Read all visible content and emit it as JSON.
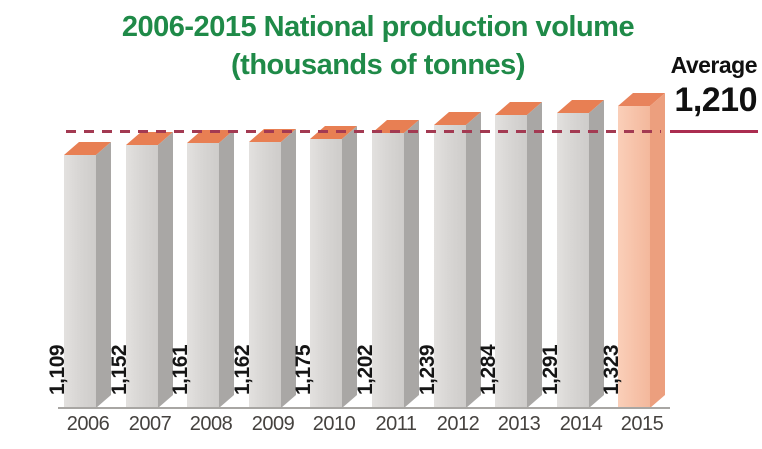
{
  "title": {
    "line1": "2006-2015 National production volume",
    "line2": "(thousands of tonnes)"
  },
  "average": {
    "label": "Average",
    "value": "1,210",
    "numeric": 1210
  },
  "chart_data": {
    "type": "bar",
    "title": "2006-2015 National production volume (thousands of tonnes)",
    "xlabel": "",
    "ylabel": "",
    "ylim": [
      0,
      1370
    ],
    "grid": false,
    "legend": "none",
    "categories": [
      "2006",
      "2007",
      "2008",
      "2009",
      "2010",
      "2011",
      "2012",
      "2013",
      "2014",
      "2015"
    ],
    "values": [
      1109,
      1152,
      1161,
      1162,
      1175,
      1202,
      1239,
      1284,
      1291,
      1323
    ],
    "value_labels": [
      "1,109",
      "1,152",
      "1,161",
      "1,162",
      "1,175",
      "1,202",
      "1,239",
      "1,284",
      "1,291",
      "1,323"
    ],
    "average_line": 1210,
    "average_line_style": "dashed",
    "highlight_category": "2015",
    "style": "3d-columns",
    "colors": {
      "title_green": "#1f8a48",
      "average_line": "#a33a52",
      "average_underline": "#ab2d50",
      "axis": "#a8a6a3",
      "tick_text": "#45423f",
      "value_text": "#151515",
      "normal": {
        "front": "#d8d6d4",
        "front_light": "#e3e1df",
        "front_dark": "#ceccca",
        "side": "#a9a7a5",
        "top": "#e87f53"
      },
      "highlight": {
        "front": "#f7c4ab",
        "front_light": "#facfb9",
        "front_dark": "#f3b89c",
        "side": "#ec9f7e",
        "top": "#e8835c"
      }
    }
  }
}
